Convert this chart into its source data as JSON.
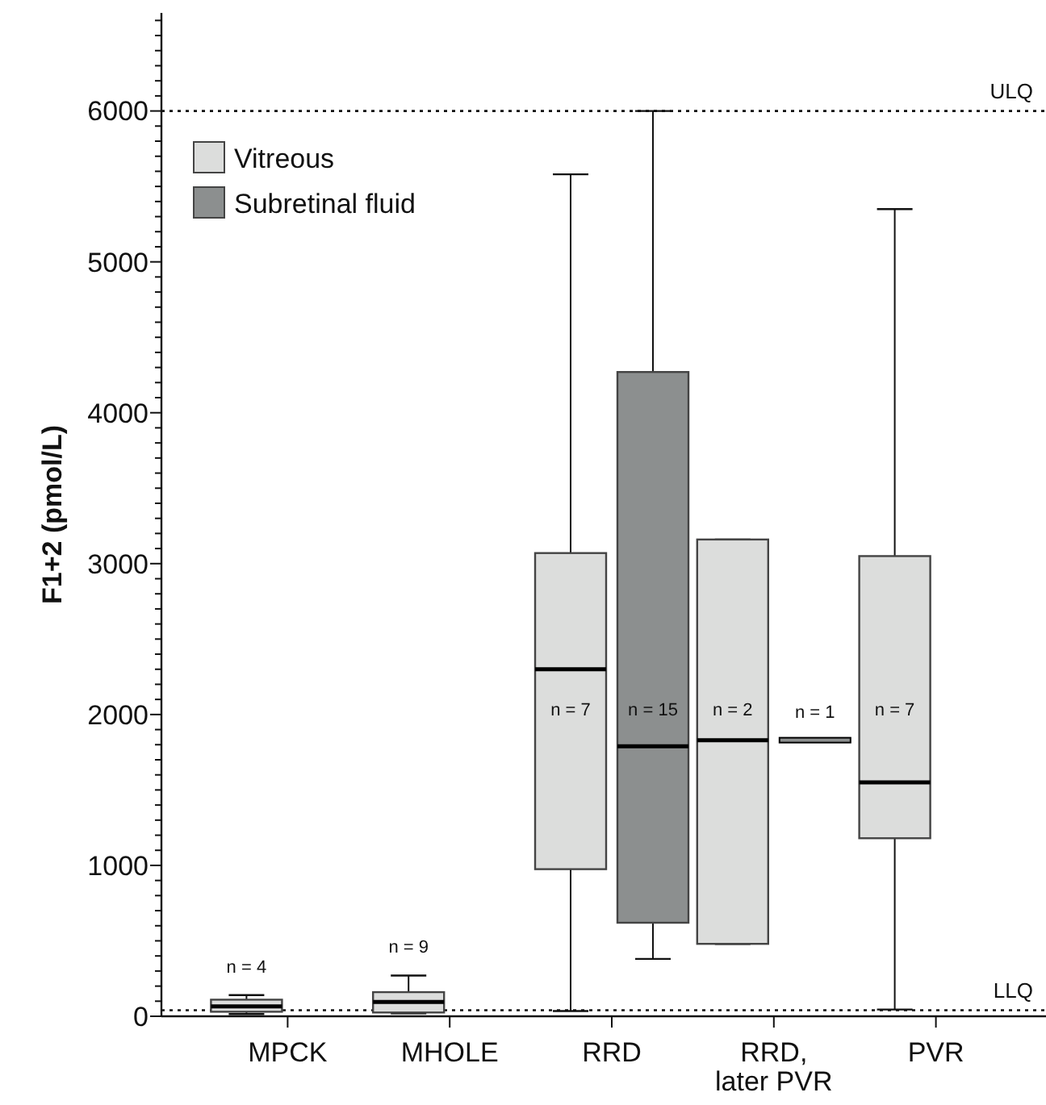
{
  "chart_data": {
    "type": "box",
    "ylabel": "F1+2 (pmol/L)",
    "categories": [
      "MPCK",
      "MHOLE",
      "RRD",
      "RRD, later PVR",
      "PVR"
    ],
    "ylim": [
      0,
      6650
    ],
    "yticks": [
      0,
      {
        "value": 100,
        "label": null
      },
      {
        "value": 200,
        "label": null
      },
      {
        "value": 300,
        "label": null
      },
      {
        "value": 400,
        "label": null
      },
      {
        "value": 500,
        "label": null
      },
      {
        "value": 600,
        "label": null
      },
      {
        "value": 700,
        "label": null
      },
      {
        "value": 800,
        "label": null
      },
      {
        "value": 900,
        "label": null
      },
      1000,
      {
        "value": 1100,
        "label": null
      },
      {
        "value": 1200,
        "label": null
      },
      {
        "value": 1300,
        "label": null
      },
      {
        "value": 1400,
        "label": null
      },
      {
        "value": 1500,
        "label": null
      },
      {
        "value": 1600,
        "label": null
      },
      {
        "value": 1700,
        "label": null
      },
      {
        "value": 1800,
        "label": null
      },
      {
        "value": 1900,
        "label": null
      },
      2000,
      {
        "value": 2100,
        "label": null
      },
      {
        "value": 2200,
        "label": null
      },
      {
        "value": 2300,
        "label": null
      },
      {
        "value": 2400,
        "label": null
      },
      {
        "value": 2500,
        "label": null
      },
      {
        "value": 2600,
        "label": null
      },
      {
        "value": 2700,
        "label": null
      },
      {
        "value": 2800,
        "label": null
      },
      {
        "value": 2900,
        "label": null
      },
      3000,
      {
        "value": 3100,
        "label": null
      },
      {
        "value": 3200,
        "label": null
      },
      {
        "value": 3300,
        "label": null
      },
      {
        "value": 3400,
        "label": null
      },
      {
        "value": 3500,
        "label": null
      },
      {
        "value": 3600,
        "label": null
      },
      {
        "value": 3700,
        "label": null
      },
      {
        "value": 3800,
        "label": null
      },
      {
        "value": 3900,
        "label": null
      },
      4000,
      {
        "value": 4100,
        "label": null
      },
      {
        "value": 4200,
        "label": null
      },
      {
        "value": 4300,
        "label": null
      },
      {
        "value": 4400,
        "label": null
      },
      {
        "value": 4500,
        "label": null
      },
      {
        "value": 4600,
        "label": null
      },
      {
        "value": 4700,
        "label": null
      },
      {
        "value": 4800,
        "label": null
      },
      {
        "value": 4900,
        "label": null
      },
      5000,
      {
        "value": 5100,
        "label": null
      },
      {
        "value": 5200,
        "label": null
      },
      {
        "value": 5300,
        "label": null
      },
      {
        "value": 5400,
        "label": null
      },
      {
        "value": 5500,
        "label": null
      },
      {
        "value": 5600,
        "label": null
      },
      {
        "value": 5700,
        "label": null
      },
      {
        "value": 5800,
        "label": null
      },
      {
        "value": 5900,
        "label": null
      },
      6000,
      {
        "value": 6100,
        "label": null
      },
      {
        "value": 6200,
        "label": null
      },
      {
        "value": 6300,
        "label": null
      },
      {
        "value": 6400,
        "label": null
      },
      {
        "value": 6500,
        "label": null
      },
      {
        "value": 6600,
        "label": null
      }
    ],
    "series": [
      {
        "name": "Vitreous",
        "color": "#dcdddc",
        "value_labels": [
          "n = 4",
          "n = 9",
          "n = 7",
          "n = 2",
          "n = 7"
        ],
        "boxes": [
          {
            "low": 15,
            "q1": 30,
            "median": 65,
            "q3": 110,
            "high": 140
          },
          {
            "low": 20,
            "q1": 25,
            "median": 95,
            "q3": 160,
            "high": 270
          },
          {
            "low": 35,
            "q1": 975,
            "median": 2300,
            "q3": 3070,
            "high": 5580
          },
          {
            "low": 480,
            "q1": 480,
            "median": 1830,
            "q3": 3160,
            "high": 3160
          },
          {
            "low": 45,
            "q1": 1180,
            "median": 1550,
            "q3": 3050,
            "high": 5350
          }
        ]
      },
      {
        "name": "Subretinal fluid",
        "color": "#8c8f8f",
        "value_labels": [
          null,
          null,
          "n = 15",
          "n = 1",
          null
        ],
        "boxes": [
          null,
          null,
          {
            "low": 380,
            "q1": 620,
            "median": 1790,
            "q3": 4270,
            "high": 6000
          },
          {
            "low": 1830,
            "q1": 1830,
            "median": 1830,
            "q3": 1830,
            "high": 1830
          },
          null
        ]
      }
    ],
    "ref_lines": [
      {
        "axis": "y",
        "value": 6000,
        "label": "ULQ",
        "line_style": "dotted"
      },
      {
        "axis": "y",
        "value": 40,
        "label": "LLQ",
        "line_style": "dotted"
      }
    ],
    "legend": "top left"
  }
}
